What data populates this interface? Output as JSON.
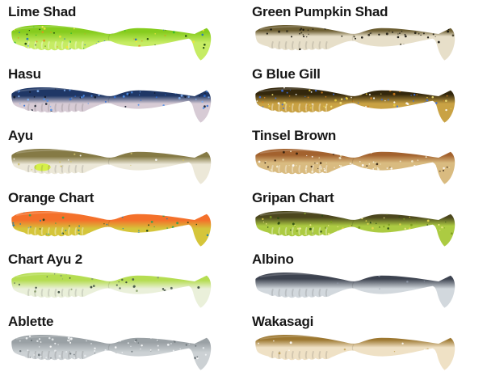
{
  "page": {
    "background": "#ffffff"
  },
  "products": [
    {
      "name": "Lime Shad",
      "colors": {
        "back": "#86cc1e",
        "belly": "#c6ec64",
        "flakes": [
          "#143c0a",
          "#2eb82e",
          "#e0951e",
          "#1b6fbf",
          "#f2e53a"
        ]
      },
      "fade_start": 0.2,
      "fade_end": 0.5,
      "flake_density": 75,
      "flake_area": "all",
      "rib": "light"
    },
    {
      "name": "Green Pumpkin Shad",
      "colors": {
        "back": "#6d5f33",
        "belly": "#e7dfc9",
        "flakes": [
          "#1e1a10",
          "#3a3420",
          "#0d0b06"
        ]
      },
      "fade_start": 0.16,
      "fade_end": 0.32,
      "flake_density": 60,
      "flake_area": "back",
      "rib": "dark"
    },
    {
      "name": "Hasu",
      "colors": {
        "back": "#1f3766",
        "belly": "#d7cbd5",
        "flakes": [
          "#2f6fd6",
          "#4f8fe8",
          "#101828",
          "#7fb0f2"
        ]
      },
      "fade_start": 0.24,
      "fade_end": 0.46,
      "flake_density": 90,
      "flake_area": "back",
      "rib": "dark"
    },
    {
      "name": "G Blue Gill",
      "colors": {
        "back": "#33270c",
        "belly": "#c9a244",
        "flakes": [
          "#eace3e",
          "#f5e67a",
          "#3a6de0",
          "#ffffff",
          "#d47f1e"
        ]
      },
      "fade_start": 0.2,
      "fade_end": 0.46,
      "flake_density": 120,
      "flake_area": "all",
      "rib": "light"
    },
    {
      "name": "Ayu",
      "colors": {
        "back": "#857a45",
        "belly": "#ece8d8",
        "flakes": [
          "#cfc06a",
          "#ffffff"
        ],
        "accent": "#d4f03c"
      },
      "fade_start": 0.22,
      "fade_end": 0.44,
      "flake_density": 18,
      "flake_area": "all",
      "rib": "dark"
    },
    {
      "name": "Tinsel Brown",
      "colors": {
        "back": "#a3622e",
        "belly": "#d9bb80",
        "flakes": [
          "#f5efd5",
          "#ffffff",
          "#2e1d0c",
          "#e8d9a8"
        ]
      },
      "fade_start": 0.18,
      "fade_end": 0.4,
      "flake_density": 100,
      "flake_area": "belly",
      "rib": "light"
    },
    {
      "name": "Orange Chart",
      "colors": {
        "back": "#f4712b",
        "belly": "#d5c53a",
        "flakes": [
          "#2e9e53",
          "#133a16",
          "#1f7fae"
        ]
      },
      "fade_start": 0.26,
      "fade_end": 0.5,
      "flake_density": 55,
      "flake_area": "belly",
      "rib": "light"
    },
    {
      "name": "Gripan Chart",
      "colors": {
        "back": "#4c471e",
        "belly": "#accb42",
        "flakes": [
          "#e6d84e",
          "#7a9a1e",
          "#2a4a10",
          "#f2ea8a"
        ]
      },
      "fade_start": 0.18,
      "fade_end": 0.42,
      "flake_density": 85,
      "flake_area": "belly",
      "rib": "light"
    },
    {
      "name": "Chart Ayu 2",
      "colors": {
        "back": "#b5dd52",
        "belly": "#eaf0da",
        "flakes": [
          "#46584a",
          "#8aa06a",
          "#2f3f33"
        ]
      },
      "fade_start": 0.22,
      "fade_end": 0.46,
      "flake_density": 45,
      "flake_area": "all",
      "rib": "dark"
    },
    {
      "name": "Albino",
      "colors": {
        "back": "#3d4350",
        "belly": "#d2d8dd",
        "flakes": [
          "#8f99a8"
        ]
      },
      "fade_start": 0.18,
      "fade_end": 0.46,
      "flake_density": 6,
      "flake_area": "back",
      "rib": "dark"
    },
    {
      "name": "Ablette",
      "colors": {
        "back": "#9aa1a5",
        "belly": "#ccd1d4",
        "flakes": [
          "#ffffff",
          "#f2f5f7",
          "#6a7276",
          "#e8ecee"
        ]
      },
      "fade_start": 0.22,
      "fade_end": 0.5,
      "flake_density": 110,
      "flake_area": "all",
      "rib": "dark"
    },
    {
      "name": "Wakasagi",
      "colors": {
        "back": "#9d7831",
        "belly": "#efe1c5",
        "flakes": [
          "#ffffff",
          "#c8a860"
        ]
      },
      "fade_start": 0.14,
      "fade_end": 0.36,
      "flake_density": 14,
      "flake_area": "all",
      "rib": "dark"
    }
  ]
}
